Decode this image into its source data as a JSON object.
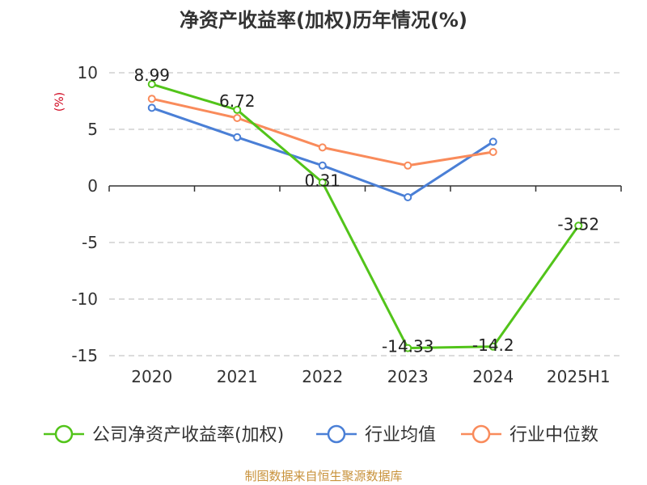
{
  "chart_data": {
    "type": "line",
    "title": "净资产收益率(加权)历年情况(%)",
    "ylabel": "(%)",
    "categories": [
      "2020",
      "2021",
      "2022",
      "2023",
      "2024",
      "2025H1"
    ],
    "ylim": [
      -15,
      10
    ],
    "yticks": [
      10,
      5,
      0,
      -5,
      -10,
      -15
    ],
    "grid": true,
    "legend_position": "bottom",
    "series": [
      {
        "name": "公司净资产收益率(加权)",
        "color": "#52c41a",
        "values": [
          8.99,
          6.72,
          0.31,
          -14.33,
          -14.2,
          -3.52
        ],
        "labels": [
          "8.99",
          "6.72",
          "0.31",
          "-14.33",
          "-14.2",
          "-3.52"
        ]
      },
      {
        "name": "行业均值",
        "color": "#4a7fd6",
        "values": [
          6.9,
          4.3,
          1.8,
          -1.0,
          3.9,
          null
        ]
      },
      {
        "name": "行业中位数",
        "color": "#f98b5b",
        "values": [
          7.7,
          6.0,
          3.4,
          1.8,
          3.0,
          null
        ]
      }
    ]
  },
  "source": "制图数据来自恒生聚源数据库"
}
